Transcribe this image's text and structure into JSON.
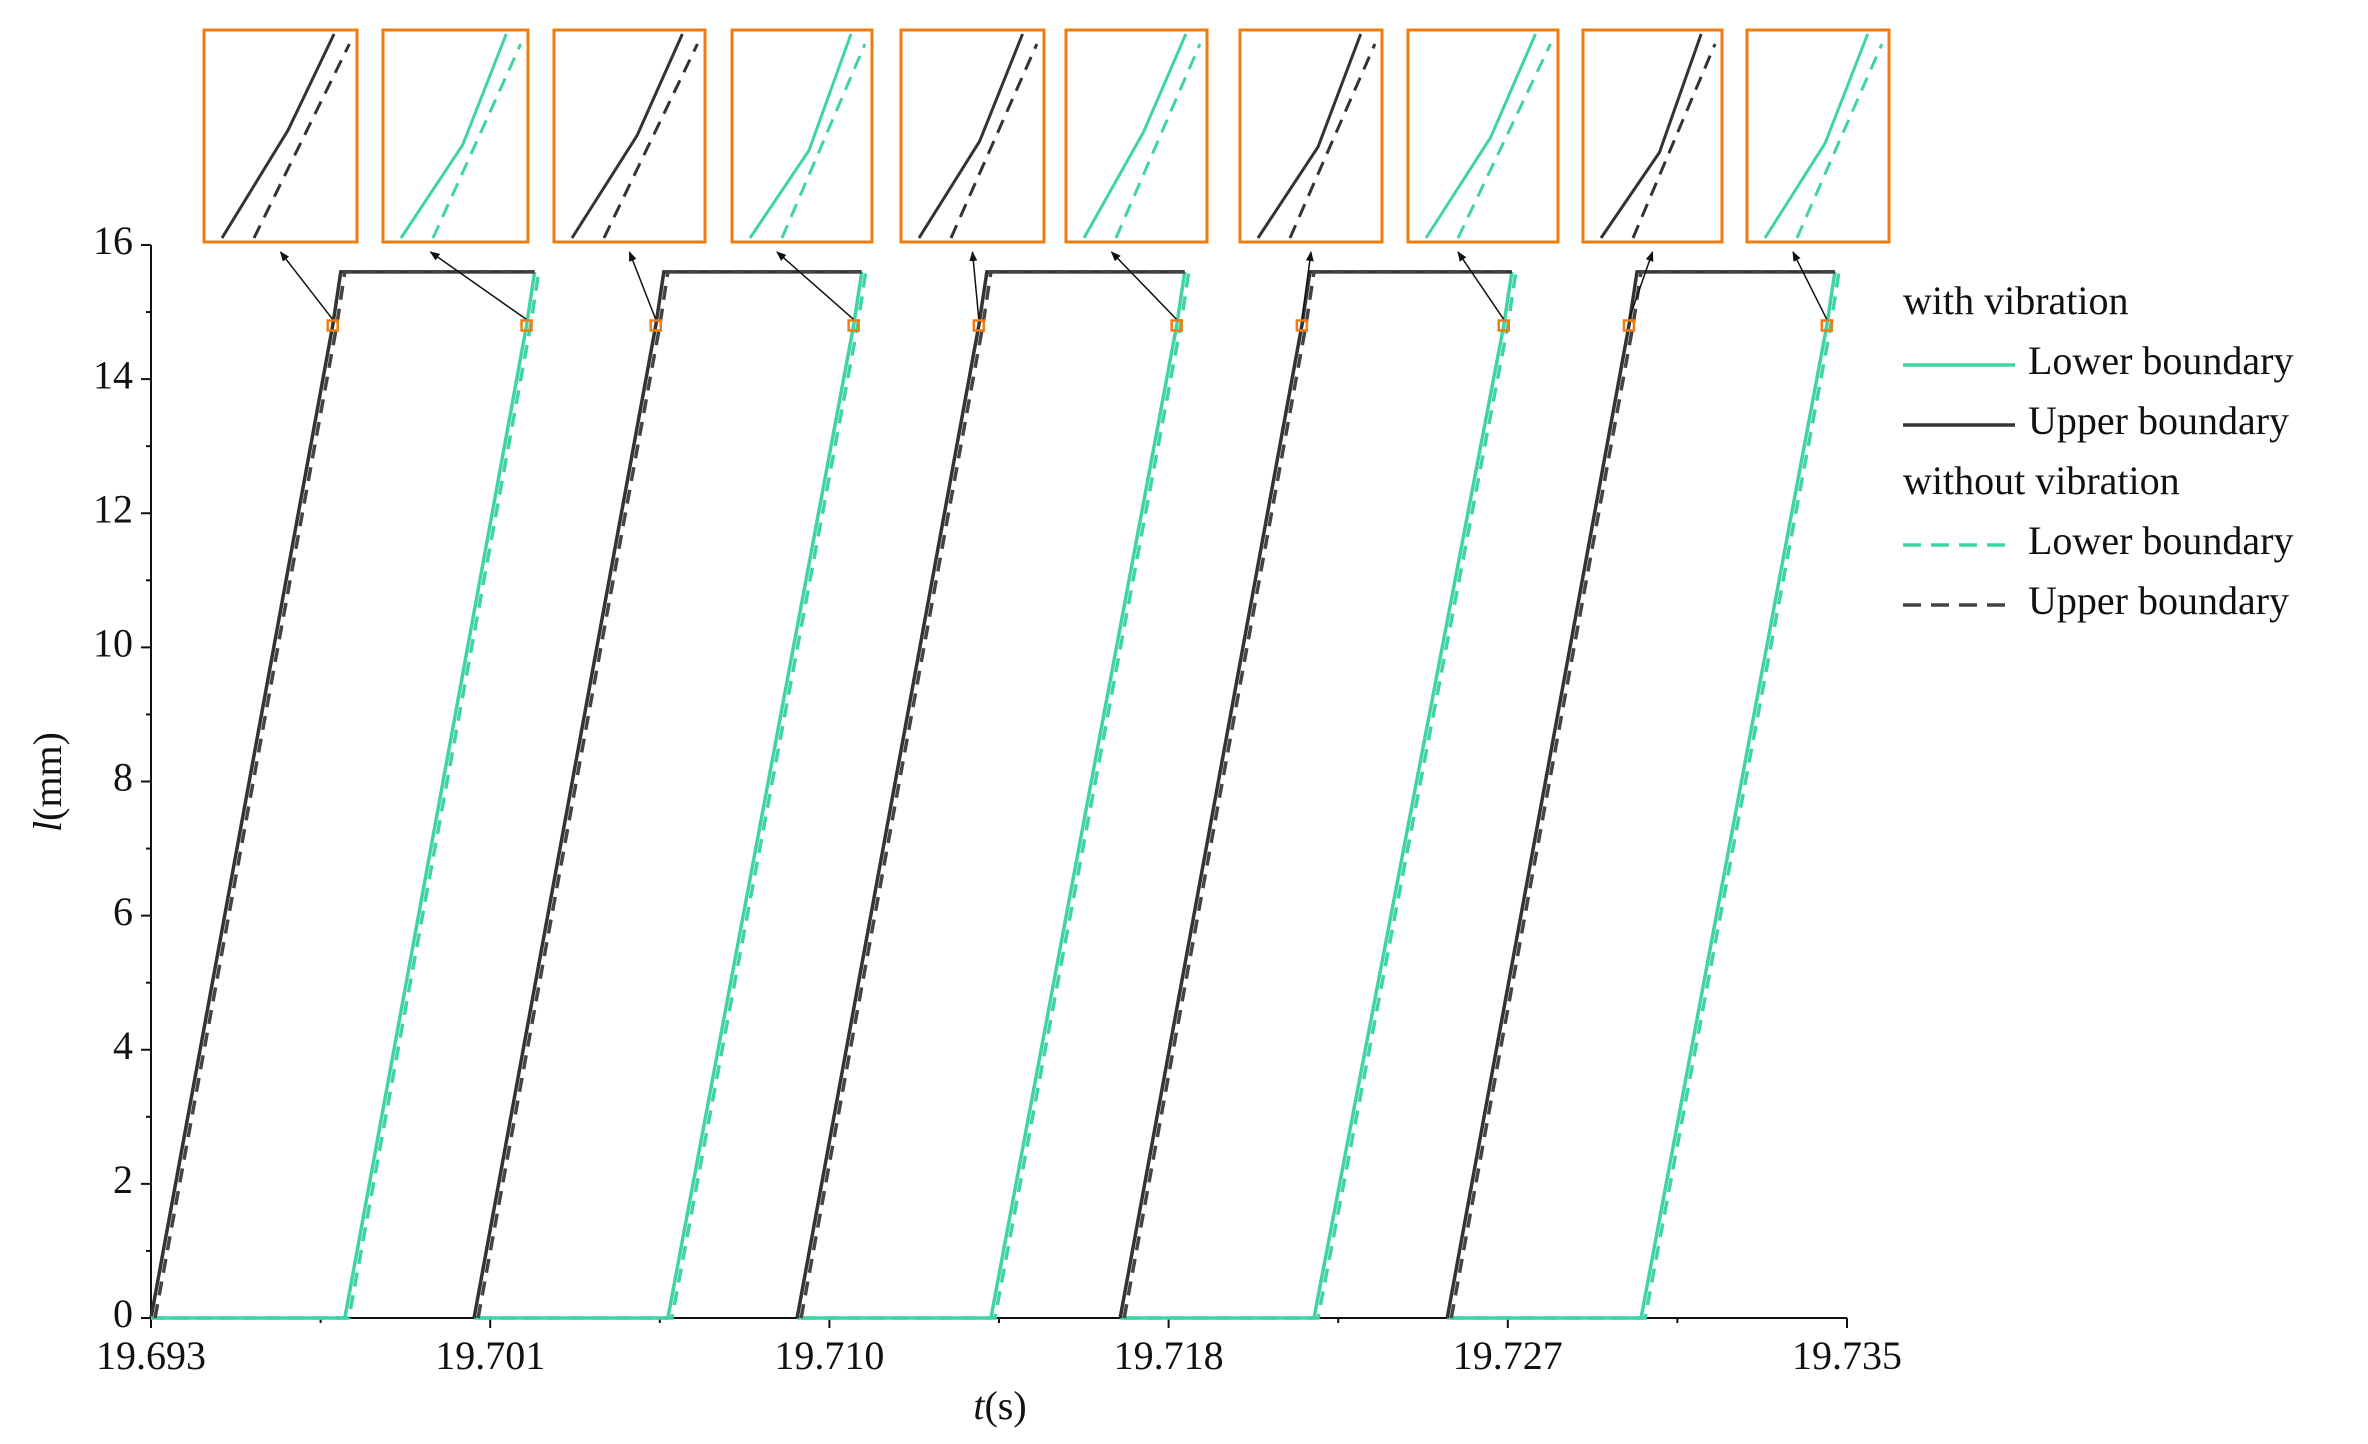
{
  "chart_data": {
    "type": "line",
    "x_symbol": "t",
    "x_unit": "(s)",
    "y_symbol": "l",
    "y_unit": "(mm)",
    "xlim": [
      19.693,
      19.735
    ],
    "xticks": [
      {
        "value": 19.693,
        "label": "19.693"
      },
      {
        "value": 19.7014,
        "label": "19.701"
      },
      {
        "value": 19.7098,
        "label": "19.710"
      },
      {
        "value": 19.7182,
        "label": "19.718"
      },
      {
        "value": 19.7266,
        "label": "19.727"
      },
      {
        "value": 19.735,
        "label": "19.735"
      }
    ],
    "ylim": [
      0,
      16
    ],
    "yticks": [
      0,
      2,
      4,
      6,
      8,
      10,
      12,
      14,
      16
    ],
    "legend_groups": [
      "with vibration",
      "without vibration"
    ],
    "series": [
      {
        "name": "Lower boundary",
        "color": "#3fd3a7",
        "dashed": false,
        "x": [
          19.693,
          19.6978,
          19.7023,
          19.7025,
          null,
          19.701,
          19.7058,
          19.7104,
          19.7106,
          null,
          19.709,
          19.7138,
          19.7184,
          19.7186,
          null,
          19.717,
          19.7218,
          19.7265,
          19.7267,
          null,
          19.7251,
          19.7299,
          19.7345,
          19.7347
        ],
        "values": [
          0,
          0,
          14.8,
          15.6,
          null,
          0,
          0,
          14.8,
          15.6,
          null,
          0,
          0,
          14.8,
          15.6,
          null,
          0,
          0,
          14.8,
          15.6,
          null,
          0,
          0,
          14.8,
          15.6
        ]
      },
      {
        "name": "Upper boundary",
        "color": "#333333",
        "dashed": false,
        "x": [
          19.693,
          19.6975,
          19.6977,
          19.7025,
          null,
          19.701,
          19.7055,
          19.7057,
          19.7106,
          null,
          19.709,
          19.7135,
          19.7137,
          19.7186,
          null,
          19.717,
          19.7215,
          19.7217,
          19.7267,
          null,
          19.7251,
          19.7296,
          19.7298,
          19.7347
        ],
        "values": [
          0,
          14.8,
          15.6,
          15.6,
          null,
          0,
          14.8,
          15.6,
          15.6,
          null,
          0,
          14.8,
          15.6,
          15.6,
          null,
          0,
          14.8,
          15.6,
          15.6,
          null,
          0,
          14.8,
          15.6,
          15.6
        ]
      },
      {
        "name": "Lower boundary",
        "color": "#3fd3a7",
        "dashed": true,
        "x": [
          19.693,
          19.6979,
          19.7024,
          19.7026,
          null,
          19.7011,
          19.7059,
          19.7105,
          19.7107,
          null,
          19.7091,
          19.7139,
          19.7185,
          19.7187,
          null,
          19.7171,
          19.7219,
          19.7266,
          19.7268,
          null,
          19.7252,
          19.73,
          19.7346,
          19.7348
        ],
        "values": [
          0,
          0,
          14.8,
          15.6,
          null,
          0,
          0,
          14.8,
          15.6,
          null,
          0,
          0,
          14.8,
          15.6,
          null,
          0,
          0,
          14.8,
          15.6,
          null,
          0,
          0,
          14.8,
          15.6
        ]
      },
      {
        "name": "Upper boundary",
        "color": "#444444",
        "dashed": true,
        "x": [
          19.6931,
          19.6976,
          19.6978,
          19.7025,
          null,
          19.7011,
          19.7056,
          19.7058,
          19.7106,
          null,
          19.7091,
          19.7136,
          19.7138,
          19.7186,
          null,
          19.7171,
          19.7216,
          19.7218,
          19.7267,
          null,
          19.7252,
          19.7297,
          19.7299,
          19.7347
        ],
        "values": [
          0,
          14.8,
          15.6,
          15.6,
          null,
          0,
          14.8,
          15.6,
          15.6,
          null,
          0,
          14.8,
          15.6,
          15.6,
          null,
          0,
          14.8,
          15.6,
          15.6,
          null,
          0,
          14.8,
          15.6,
          15.6
        ]
      }
    ]
  }
}
